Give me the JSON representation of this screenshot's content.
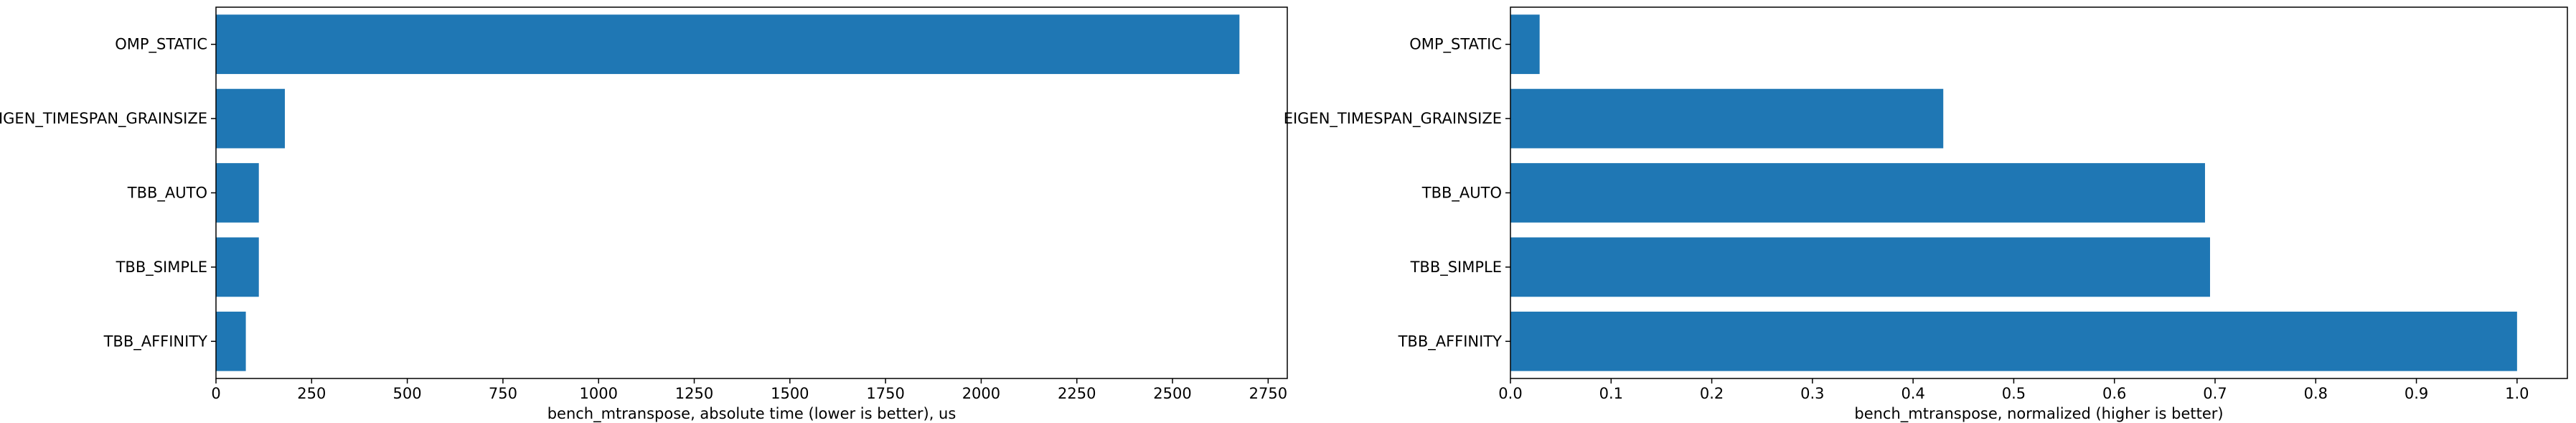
{
  "chart_data": [
    {
      "type": "bar",
      "orientation": "horizontal",
      "categories": [
        "OMP_STATIC",
        "EIGEN_TIMESPAN_GRAINSIZE",
        "TBB_AUTO",
        "TBB_SIMPLE",
        "TBB_AFFINITY"
      ],
      "values": [
        2675,
        180,
        112,
        112,
        78
      ],
      "xlabel": "bench_mtranspose, absolute time (lower is better), us",
      "ylabel": "",
      "xlim": [
        0,
        2800
      ],
      "xticks": [
        0,
        250,
        500,
        750,
        1000,
        1250,
        1500,
        1750,
        2000,
        2250,
        2500,
        2750
      ],
      "xtick_labels": [
        "0",
        "250",
        "500",
        "750",
        "1000",
        "1250",
        "1500",
        "1750",
        "2000",
        "2250",
        "2500",
        "2750"
      ],
      "grid": false,
      "bar_color": "#1f77b4"
    },
    {
      "type": "bar",
      "orientation": "horizontal",
      "categories": [
        "OMP_STATIC",
        "EIGEN_TIMESPAN_GRAINSIZE",
        "TBB_AUTO",
        "TBB_SIMPLE",
        "TBB_AFFINITY"
      ],
      "values": [
        0.029,
        0.43,
        0.69,
        0.695,
        1.0
      ],
      "xlabel": "bench_mtranspose, normalized (higher is better)",
      "ylabel": "",
      "xlim": [
        0,
        1.05
      ],
      "xticks": [
        0.0,
        0.1,
        0.2,
        0.3,
        0.4,
        0.5,
        0.6,
        0.7,
        0.8,
        0.9,
        1.0
      ],
      "xtick_labels": [
        "0.0",
        "0.1",
        "0.2",
        "0.3",
        "0.4",
        "0.5",
        "0.6",
        "0.7",
        "0.8",
        "0.9",
        "1.0"
      ],
      "grid": false,
      "bar_color": "#1f77b4"
    }
  ]
}
